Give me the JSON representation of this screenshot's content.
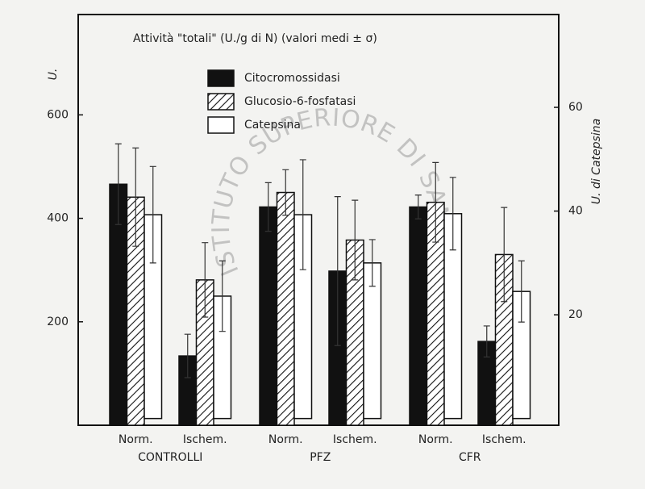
{
  "chart_data": {
    "type": "bar",
    "title": "Attività  \"totali\" (U./g di N) (valori medi ± σ)",
    "y_label": "U.",
    "y2_label": "U. di Catepsina",
    "watermark": "ISTITUTO SUPERIORE DI SANITA",
    "categories": [
      "Norm.",
      "Ischem.",
      "Norm.",
      "Ischem.",
      "Norm.",
      "Ischem."
    ],
    "groups": [
      "CONTROLLI",
      "PFZ",
      "CFR"
    ],
    "ylim": [
      0,
      794
    ],
    "yticks": [
      200,
      400,
      600
    ],
    "y2lim": [
      -1.3,
      77.9
    ],
    "y2ticks": [
      20,
      40,
      60
    ],
    "grid": false,
    "series": [
      {
        "name": "Citocromossidasi",
        "color": "#111111",
        "pattern": "solid",
        "values": [
          466,
          134,
          422,
          298,
          422,
          162
        ],
        "errors": [
          78,
          42,
          47,
          144,
          23,
          30
        ]
      },
      {
        "name": "Glucosio-6-fosfatasi",
        "color": "#111111",
        "pattern": "hatch",
        "values": [
          441,
          281,
          450,
          358,
          431,
          330
        ],
        "errors": [
          95,
          72,
          44,
          77,
          77,
          91
        ]
      },
      {
        "name": "Catepsina",
        "color": "#ffffff",
        "pattern": "solid",
        "axis": "y2",
        "values": [
          39.3,
          23.6,
          39.3,
          30.0,
          39.5,
          24.5
        ],
        "errors": [
          9.3,
          6.8,
          10.6,
          4.5,
          7.0,
          5.9
        ]
      }
    ]
  }
}
